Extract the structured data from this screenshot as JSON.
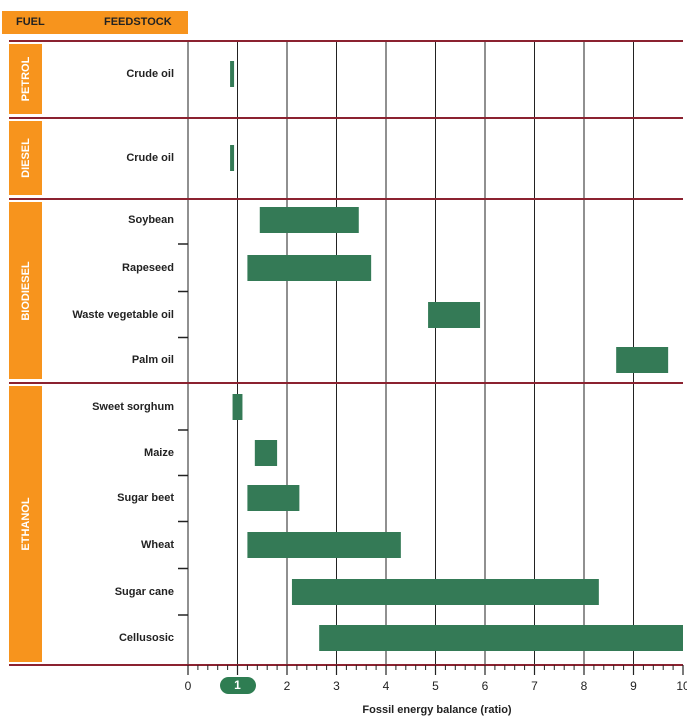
{
  "header": {
    "fuel": "FUEL",
    "feedstock": "FEEDSTOCK"
  },
  "colors": {
    "bar": "#347a56",
    "orange": "#f7941d",
    "divider": "#8b2230",
    "grid": "#222222"
  },
  "chart_data": {
    "type": "bar",
    "orientation": "horizontal",
    "bar_style": "range",
    "xlabel": "Fossil energy balance (ratio)",
    "xlim": [
      0,
      10
    ],
    "xticks": [
      "0",
      "1",
      "2",
      "3",
      "4",
      "5",
      "6",
      "7",
      "8",
      "9",
      "10"
    ],
    "highlighted_tick": "1",
    "groups": [
      {
        "fuel": "PETROL",
        "items": [
          {
            "feedstock": "Crude oil",
            "min": 0.85,
            "max": 0.93
          }
        ]
      },
      {
        "fuel": "DIESEL",
        "items": [
          {
            "feedstock": "Crude oil",
            "min": 0.85,
            "max": 0.93
          }
        ]
      },
      {
        "fuel": "BIODIESEL",
        "items": [
          {
            "feedstock": "Soybean",
            "min": 1.45,
            "max": 3.45
          },
          {
            "feedstock": "Rapeseed",
            "min": 1.2,
            "max": 3.7
          },
          {
            "feedstock": "Waste vegetable oil",
            "min": 4.85,
            "max": 5.9
          },
          {
            "feedstock": "Palm oil",
            "min": 8.65,
            "max": 9.7
          }
        ]
      },
      {
        "fuel": "ETHANOL",
        "items": [
          {
            "feedstock": "Sweet sorghum",
            "min": 0.9,
            "max": 1.1
          },
          {
            "feedstock": "Maize",
            "min": 1.35,
            "max": 1.8
          },
          {
            "feedstock": "Sugar beet",
            "min": 1.2,
            "max": 2.25
          },
          {
            "feedstock": "Wheat",
            "min": 1.2,
            "max": 4.3
          },
          {
            "feedstock": "Sugar cane",
            "min": 2.1,
            "max": 8.3
          },
          {
            "feedstock": "Cellusosic",
            "min": 2.65,
            "max": 10.0
          }
        ]
      }
    ]
  }
}
